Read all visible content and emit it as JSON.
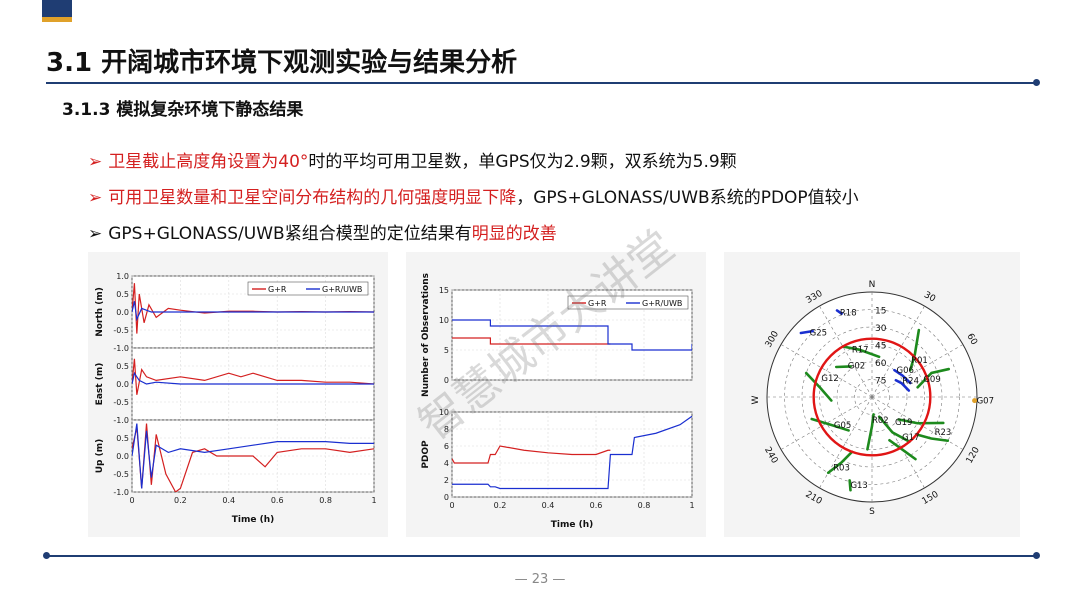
{
  "slide": {
    "title": "3.1 开阔城市环境下观测实验与结果分析",
    "subtitle": "3.1.3 模拟复杂环境下静态结果",
    "bullets": [
      {
        "arrow": "➢",
        "parts": [
          {
            "text": "卫星截止高度角设置为40°",
            "red": true
          },
          {
            "text": "时的平均可用卫星数，单GPS仅为2.9颗，双系统为5.9颗",
            "red": false
          }
        ]
      },
      {
        "arrow": "➢",
        "parts": [
          {
            "text": "可用卫星数量和卫星空间分布结构的几何强度明显下降",
            "red": true
          },
          {
            "text": "，GPS+GLONASS/UWB系统的PDOP值较小",
            "red": false
          }
        ]
      },
      {
        "arrow": "➢",
        "parts": [
          {
            "text": "GPS+GLONASS/UWB紧组合模型的定位结果有",
            "red": false
          },
          {
            "text": "明显的改善",
            "red": true
          }
        ]
      }
    ],
    "watermark": "智慧城市大讲堂",
    "page_number": "— 23 —"
  },
  "chart_data": [
    {
      "type": "line",
      "id": "position-error",
      "xlabel": "Time (h)",
      "xlim": [
        0,
        1
      ],
      "xticks": [
        "0",
        "0.2",
        "0.4",
        "0.6",
        "0.8",
        "1"
      ],
      "legend": {
        "position": "top-right",
        "entries": [
          "G+R",
          "G+R/UWB"
        ]
      },
      "colors": {
        "G+R": "#d42020",
        "G+R/UWB": "#1a2fd0"
      },
      "subplots": [
        {
          "ylabel": "North (m)",
          "ylim": [
            -1,
            1
          ],
          "yticks": [
            "1.0",
            "0.5",
            "0.0",
            "-0.5"
          ],
          "series": [
            {
              "name": "G+R",
              "x": [
                0,
                0.01,
                0.02,
                0.03,
                0.05,
                0.07,
                0.1,
                0.15,
                0.2,
                0.3,
                0.4,
                0.5,
                0.6,
                0.7,
                0.8,
                0.9,
                1.0
              ],
              "y": [
                0.0,
                0.8,
                -0.6,
                0.5,
                -0.3,
                0.2,
                -0.15,
                0.1,
                0.05,
                -0.03,
                0.02,
                0.02,
                0.0,
                0.01,
                0.0,
                0.01,
                0.0
              ]
            },
            {
              "name": "G+R/UWB",
              "x": [
                0,
                0.01,
                0.02,
                0.04,
                0.08,
                0.15,
                0.3,
                0.5,
                0.7,
                1.0
              ],
              "y": [
                0.0,
                0.3,
                -0.2,
                0.1,
                0.0,
                0.0,
                0.0,
                0.0,
                0.0,
                0.0
              ]
            }
          ]
        },
        {
          "ylabel": "East (m)",
          "ylim": [
            -1,
            1
          ],
          "yticks": [
            "-1.0",
            "0.5",
            "0.0",
            "-0.5"
          ],
          "series": [
            {
              "name": "G+R",
              "x": [
                0,
                0.01,
                0.02,
                0.04,
                0.06,
                0.1,
                0.2,
                0.3,
                0.4,
                0.45,
                0.5,
                0.6,
                0.7,
                0.8,
                0.9,
                1.0
              ],
              "y": [
                0.0,
                0.7,
                -0.3,
                0.4,
                0.2,
                0.1,
                0.2,
                0.1,
                0.3,
                0.2,
                0.3,
                0.1,
                0.1,
                0.05,
                0.05,
                0.0
              ]
            },
            {
              "name": "G+R/UWB",
              "x": [
                0,
                0.01,
                0.03,
                0.06,
                0.1,
                0.2,
                0.5,
                0.8,
                1.0
              ],
              "y": [
                0.0,
                0.3,
                0.1,
                0.0,
                0.05,
                0.0,
                0.0,
                0.0,
                0.0
              ]
            }
          ]
        },
        {
          "ylabel": "Up (m)",
          "ylim": [
            -1,
            1
          ],
          "yticks": [
            "-1.0",
            "0.5",
            "0.0",
            "-0.5",
            "-1.0"
          ],
          "series": [
            {
              "name": "G+R",
              "x": [
                0,
                0.02,
                0.04,
                0.06,
                0.08,
                0.1,
                0.14,
                0.18,
                0.2,
                0.25,
                0.3,
                0.35,
                0.4,
                0.5,
                0.55,
                0.6,
                0.7,
                0.8,
                0.9,
                1.0
              ],
              "y": [
                0.2,
                0.8,
                -0.9,
                0.9,
                -0.8,
                0.6,
                -0.5,
                -1.0,
                -0.9,
                0.1,
                0.2,
                0.0,
                0.0,
                0.0,
                -0.3,
                0.1,
                0.2,
                0.2,
                0.1,
                0.2
              ]
            },
            {
              "name": "G+R/UWB",
              "x": [
                0,
                0.02,
                0.04,
                0.06,
                0.08,
                0.1,
                0.15,
                0.2,
                0.3,
                0.4,
                0.5,
                0.6,
                0.7,
                0.8,
                0.9,
                1.0
              ],
              "y": [
                0.0,
                0.9,
                -0.9,
                0.7,
                -0.6,
                0.3,
                0.1,
                0.2,
                0.1,
                0.2,
                0.3,
                0.4,
                0.4,
                0.4,
                0.35,
                0.35
              ]
            }
          ]
        }
      ]
    },
    {
      "type": "line",
      "id": "observations-pdop",
      "xlabel": "Time (h)",
      "xlim": [
        0,
        1
      ],
      "xticks": [
        "0",
        "0.2",
        "0.4",
        "0.6",
        "0.8",
        "1"
      ],
      "legend": {
        "position": "top-right",
        "entries": [
          "G+R",
          "G+R/UWB"
        ]
      },
      "subplots": [
        {
          "ylabel": "Number of Observations",
          "ylim": [
            0,
            15
          ],
          "yticks": [
            "0",
            "5",
            "10",
            "15"
          ],
          "series": [
            {
              "name": "G+R",
              "step": true,
              "x": [
                0,
                0.15,
                0.16,
                0.18,
                0.2,
                0.65,
                0.66
              ],
              "y": [
                7,
                7,
                6,
                6,
                6,
                6,
                6
              ]
            },
            {
              "name": "G+R/UWB",
              "step": true,
              "x": [
                0,
                0.15,
                0.16,
                0.18,
                0.2,
                0.65,
                0.75,
                0.99,
                1.0
              ],
              "y": [
                10,
                10,
                9,
                9,
                9,
                6,
                5,
                5,
                6
              ]
            }
          ]
        },
        {
          "ylabel": "PDOP",
          "ylim": [
            0,
            10
          ],
          "yticks": [
            "0",
            "2",
            "4",
            "6",
            "8",
            "10"
          ],
          "series": [
            {
              "name": "G+R",
              "x": [
                0,
                0.01,
                0.15,
                0.16,
                0.18,
                0.2,
                0.3,
                0.4,
                0.5,
                0.6,
                0.65,
                0.66
              ],
              "y": [
                4.5,
                4.0,
                4.0,
                5.0,
                5.0,
                6.0,
                5.5,
                5.2,
                5.0,
                5.0,
                5.5,
                5.5
              ]
            },
            {
              "name": "G+R/UWB",
              "x": [
                0,
                0.15,
                0.16,
                0.18,
                0.2,
                0.65,
                0.66,
                0.75,
                0.76,
                0.85,
                0.95,
                1.0
              ],
              "y": [
                1.5,
                1.5,
                1.2,
                1.2,
                1.0,
                1.0,
                5.0,
                5.0,
                7.0,
                7.5,
                8.5,
                9.5
              ]
            }
          ]
        }
      ]
    },
    {
      "type": "scatter",
      "id": "skyplot",
      "directions": {
        "n": "N",
        "s": "S",
        "w": "W",
        "e": "E"
      },
      "elevation_labels": [
        "15",
        "30",
        "45",
        "60",
        "75"
      ],
      "azimuth_labels": [
        "30",
        "60",
        "120",
        "150",
        "210",
        "240",
        "300",
        "330"
      ],
      "cutoff_elevation_deg": 40,
      "colors": {
        "gps": "#1d8a1d",
        "glonass": "#1a2fd0",
        "cutoff": "#e01515",
        "other": "#e0a12a"
      },
      "satellites": [
        {
          "prn": "R18",
          "az": 338,
          "el": 12,
          "system": "glonass"
        },
        {
          "prn": "G25",
          "az": 315,
          "el": 12,
          "system": "gps"
        },
        {
          "prn": "R17",
          "az": 335,
          "el": 45,
          "system": "glonass"
        },
        {
          "prn": "G02",
          "az": 320,
          "el": 55,
          "system": "gps"
        },
        {
          "prn": "R01",
          "az": 45,
          "el": 45,
          "system": "glonass"
        },
        {
          "prn": "G06",
          "az": 40,
          "el": 60,
          "system": "gps"
        },
        {
          "prn": "R24",
          "az": 60,
          "el": 62,
          "system": "glonass"
        },
        {
          "prn": "G09",
          "az": 70,
          "el": 45,
          "system": "gps"
        },
        {
          "prn": "G07",
          "az": 92,
          "el": 2,
          "system": "other"
        },
        {
          "prn": "G12",
          "az": 290,
          "el": 42,
          "system": "gps"
        },
        {
          "prn": "G05",
          "az": 235,
          "el": 48,
          "system": "gps"
        },
        {
          "prn": "R02",
          "az": 185,
          "el": 70,
          "system": "glonass"
        },
        {
          "prn": "G19",
          "az": 140,
          "el": 62,
          "system": "gps"
        },
        {
          "prn": "R23",
          "az": 120,
          "el": 30,
          "system": "glonass"
        },
        {
          "prn": "G17",
          "az": 145,
          "el": 48,
          "system": "gps"
        },
        {
          "prn": "R03",
          "az": 210,
          "el": 20,
          "system": "glonass"
        },
        {
          "prn": "G13",
          "az": 195,
          "el": 12,
          "system": "gps"
        }
      ],
      "tracks": [
        {
          "system": "glonass",
          "pts": [
            [
              338,
              10
            ],
            [
              340,
              14
            ]
          ]
        },
        {
          "system": "glonass",
          "pts": [
            [
              312,
              8
            ],
            [
              318,
              14
            ]
          ]
        },
        {
          "system": "gps",
          "pts": [
            [
              330,
              40
            ],
            [
              345,
              48
            ],
            [
              10,
              55
            ]
          ]
        },
        {
          "system": "gps",
          "pts": [
            [
              310,
              50
            ],
            [
              325,
              58
            ]
          ]
        },
        {
          "system": "gps",
          "pts": [
            [
              35,
              20
            ],
            [
              45,
              38
            ],
            [
              55,
              50
            ]
          ]
        },
        {
          "system": "glonass",
          "pts": [
            [
              40,
              60
            ],
            [
              55,
              58
            ],
            [
              70,
              55
            ]
          ]
        },
        {
          "system": "glonass",
          "pts": [
            [
              55,
              65
            ],
            [
              65,
              62
            ],
            [
              80,
              58
            ]
          ]
        },
        {
          "system": "gps",
          "pts": [
            [
              70,
              20
            ],
            [
              68,
              35
            ],
            [
              78,
              50
            ]
          ]
        },
        {
          "system": "gps",
          "pts": [
            [
              290,
              30
            ],
            [
              280,
              45
            ],
            [
              265,
              55
            ]
          ]
        },
        {
          "system": "gps",
          "pts": [
            [
              250,
              35
            ],
            [
              235,
              48
            ],
            [
              215,
              55
            ]
          ]
        },
        {
          "system": "gps",
          "pts": [
            [
              185,
              45
            ],
            [
              180,
              65
            ],
            [
              175,
              75
            ]
          ]
        },
        {
          "system": "gps",
          "pts": [
            [
              140,
              40
            ],
            [
              150,
              55
            ],
            [
              160,
              72
            ]
          ]
        },
        {
          "system": "gps",
          "pts": [
            [
              120,
              15
            ],
            [
              125,
              28
            ],
            [
              130,
              40
            ]
          ]
        },
        {
          "system": "gps",
          "pts": [
            [
              145,
              25
            ],
            [
              150,
              38
            ],
            [
              158,
              50
            ]
          ]
        },
        {
          "system": "gps",
          "pts": [
            [
              210,
              15
            ],
            [
              205,
              28
            ],
            [
              200,
              40
            ]
          ]
        },
        {
          "system": "gps",
          "pts": [
            [
              193,
              8
            ],
            [
              195,
              16
            ]
          ]
        },
        {
          "system": "gps",
          "pts": [
            [
              110,
              25
            ],
            [
              120,
              45
            ],
            [
              130,
              60
            ]
          ]
        }
      ]
    }
  ]
}
